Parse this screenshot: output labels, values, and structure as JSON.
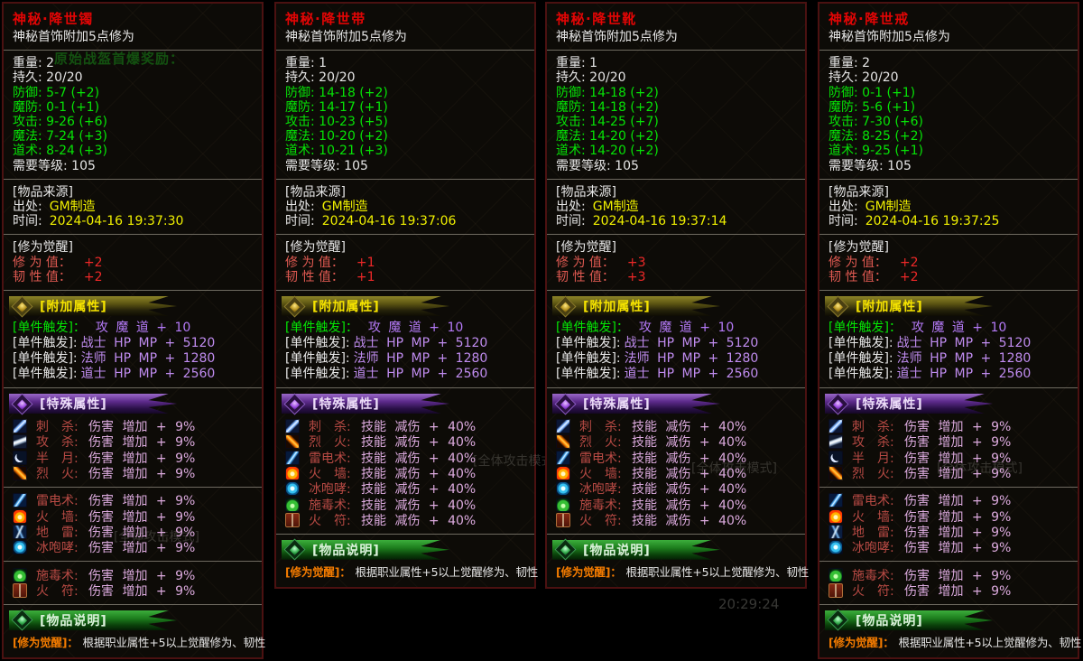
{
  "shared": {
    "subtitle": "神秘首饰附加5点修为",
    "stat_labels": [
      "重量",
      "持久",
      "防御",
      "魔防",
      "攻击",
      "魔法",
      "道术",
      "需要等级"
    ],
    "source_header": "[物品来源]",
    "origin_label": "出处:",
    "origin_value": "GM制造",
    "time_label": "时间:",
    "awaken_header": "[修为觉醒]",
    "awaken_labels": [
      "修 为 值：",
      "韧 性 值："
    ],
    "addon_banner": "[附加属性]",
    "special_banner": "[特殊属性]",
    "desc_banner": "[物品说明]",
    "trigger_rows": [
      {
        "label": "[单件触发]：",
        "value": "　攻 魔 道 + 10"
      },
      {
        "label": "[单件触发]:",
        "value": "战士 HP MP + 5120"
      },
      {
        "label": "[单件触发]:",
        "value": "法师 HP MP + 1280"
      },
      {
        "label": "[单件触发]:",
        "value": "道士 HP MP + 2560"
      }
    ],
    "desc_label": "[修为觉醒]：",
    "desc_text": "根据职业属性+5以上觉醒修为、韧性",
    "colors": {
      "title_red": "#e30505",
      "stat_green": "#06e206",
      "value_yellow": "#f0f000",
      "trigger_violet": "#c08cf0",
      "skill_name_red": "#b84a44",
      "skill_value_lavender": "#dcaade",
      "desc_orange": "#f57c00",
      "banner_gold": "#f5e300",
      "panel_border_maroon": "#4b1111"
    }
  },
  "background_bleed": {
    "reward_text": "原始战盔首爆奖励：",
    "mode_text": "[全体攻击模式]",
    "clock_text": "20:29:24"
  },
  "panels": [
    {
      "title": "神秘·降世镯",
      "stat_values": [
        "2",
        "20/20",
        "5-7 (+2)",
        "0-1 (+1)",
        "9-26 (+6)",
        "7-24 (+3)",
        "8-24 (+3)",
        "105"
      ],
      "time_value": "2024-04-16 19:37:30",
      "awaken_values": [
        "+2",
        "+2"
      ],
      "skill_groups": [
        [
          {
            "icon": "stab-sword-icon",
            "name": "刺　杀",
            "value": "伤害 增加 + 9%"
          },
          {
            "icon": "power-sword-icon",
            "name": "攻　杀",
            "value": "伤害 增加 + 9%"
          },
          {
            "icon": "half-moon-icon",
            "name": "半　月",
            "value": "伤害 增加 + 9%"
          },
          {
            "icon": "fire-sword-icon",
            "name": "烈　火",
            "value": "伤害 增加 + 9%"
          }
        ],
        [
          {
            "icon": "lightning-icon",
            "name": "雷电术",
            "value": "伤害 增加 + 9%"
          },
          {
            "icon": "fire-wall-icon",
            "name": "火　墙",
            "value": "伤害 增加 + 9%"
          },
          {
            "icon": "ground-thunder-icon",
            "name": "地　雷",
            "value": "伤害 增加 + 9%"
          },
          {
            "icon": "ice-roar-icon",
            "name": "冰咆哮",
            "value": "伤害 增加 + 9%"
          }
        ],
        [
          {
            "icon": "poison-icon",
            "name": "施毒术",
            "value": "伤害 增加 + 9%"
          },
          {
            "icon": "fire-talisman-icon",
            "name": "火　符",
            "value": "伤害 增加 + 9%"
          }
        ]
      ]
    },
    {
      "title": "神秘·降世带",
      "stat_values": [
        "1",
        "20/20",
        "14-18 (+2)",
        "14-17 (+1)",
        "10-23 (+5)",
        "10-20 (+2)",
        "10-21 (+3)",
        "105"
      ],
      "time_value": "2024-04-16 19:37:06",
      "awaken_values": [
        "+1",
        "+1"
      ],
      "skill_groups": [
        [
          {
            "icon": "stab-sword-icon",
            "name": "刺　杀",
            "value": "技能 减伤 + 40%"
          },
          {
            "icon": "fire-sword-icon",
            "name": "烈　火",
            "value": "技能 减伤 + 40%"
          },
          {
            "icon": "lightning-icon",
            "name": "雷电术",
            "value": "技能 减伤 + 40%"
          },
          {
            "icon": "fire-wall-icon",
            "name": "火　墙",
            "value": "技能 减伤 + 40%"
          },
          {
            "icon": "ice-roar-icon",
            "name": "冰咆哮",
            "value": "技能 减伤 + 40%"
          },
          {
            "icon": "poison-icon",
            "name": "施毒术",
            "value": "技能 减伤 + 40%"
          },
          {
            "icon": "fire-talisman-icon",
            "name": "火　符",
            "value": "技能 减伤 + 40%"
          }
        ]
      ]
    },
    {
      "title": "神秘·降世靴",
      "stat_values": [
        "1",
        "20/20",
        "14-18 (+2)",
        "14-18 (+2)",
        "14-25 (+7)",
        "14-20 (+2)",
        "14-20 (+2)",
        "105"
      ],
      "time_value": "2024-04-16 19:37:14",
      "awaken_values": [
        "+3",
        "+3"
      ],
      "skill_groups": [
        [
          {
            "icon": "stab-sword-icon",
            "name": "刺　杀",
            "value": "技能 减伤 + 40%"
          },
          {
            "icon": "fire-sword-icon",
            "name": "烈　火",
            "value": "技能 减伤 + 40%"
          },
          {
            "icon": "lightning-icon",
            "name": "雷电术",
            "value": "技能 减伤 + 40%"
          },
          {
            "icon": "fire-wall-icon",
            "name": "火　墙",
            "value": "技能 减伤 + 40%"
          },
          {
            "icon": "ice-roar-icon",
            "name": "冰咆哮",
            "value": "技能 减伤 + 40%"
          },
          {
            "icon": "poison-icon",
            "name": "施毒术",
            "value": "技能 减伤 + 40%"
          },
          {
            "icon": "fire-talisman-icon",
            "name": "火　符",
            "value": "技能 减伤 + 40%"
          }
        ]
      ]
    },
    {
      "title": "神秘·降世戒",
      "stat_values": [
        "2",
        "20/20",
        "0-1 (+1)",
        "5-6 (+1)",
        "7-30 (+6)",
        "8-25 (+2)",
        "9-25 (+1)",
        "105"
      ],
      "time_value": "2024-04-16 19:37:25",
      "awaken_values": [
        "+2",
        "+2"
      ],
      "skill_groups": [
        [
          {
            "icon": "stab-sword-icon",
            "name": "刺　杀",
            "value": "伤害 增加 + 9%"
          },
          {
            "icon": "power-sword-icon",
            "name": "攻　杀",
            "value": "伤害 增加 + 9%"
          },
          {
            "icon": "half-moon-icon",
            "name": "半　月",
            "value": "伤害 增加 + 9%"
          },
          {
            "icon": "fire-sword-icon",
            "name": "烈　火",
            "value": "伤害 增加 + 9%"
          }
        ],
        [
          {
            "icon": "lightning-icon",
            "name": "雷电术",
            "value": "伤害 增加 + 9%"
          },
          {
            "icon": "fire-wall-icon",
            "name": "火　墙",
            "value": "伤害 增加 + 9%"
          },
          {
            "icon": "ground-thunder-icon",
            "name": "地　雷",
            "value": "伤害 增加 + 9%"
          },
          {
            "icon": "ice-roar-icon",
            "name": "冰咆哮",
            "value": "伤害 增加 + 9%"
          }
        ],
        [
          {
            "icon": "poison-icon",
            "name": "施毒术",
            "value": "伤害 增加 + 9%"
          },
          {
            "icon": "fire-talisman-icon",
            "name": "火　符",
            "value": "伤害 增加 + 9%"
          }
        ]
      ]
    }
  ]
}
